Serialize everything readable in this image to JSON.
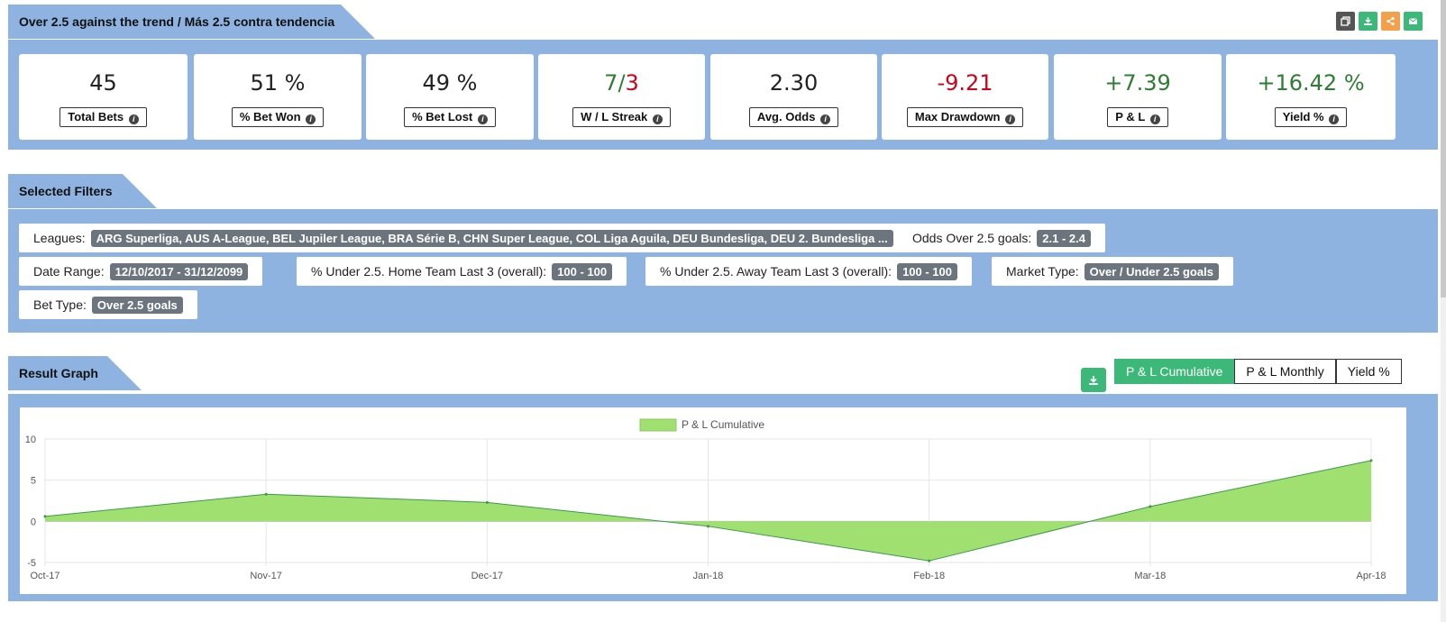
{
  "header": {
    "title": "Over 2.5 against the trend / Más 2.5 contra tendencia",
    "icons": [
      "copy-icon",
      "download-icon",
      "share-icon",
      "email-icon"
    ],
    "icon_colors": [
      "#555555",
      "#3cb878",
      "#f4a04a",
      "#3cb878"
    ]
  },
  "stats": [
    {
      "value": "45",
      "label": "Total Bets",
      "color": "#222222"
    },
    {
      "value": "51 %",
      "label": "% Bet Won",
      "color": "#222222"
    },
    {
      "value": "49 %",
      "label": "% Bet Lost",
      "color": "#222222"
    },
    {
      "value_win": "7",
      "value_sep": "/",
      "value_loss": "3",
      "label": "W / L Streak",
      "color_win": "#2e7d32",
      "color_loss": "#d0021b"
    },
    {
      "value": "2.30",
      "label": "Avg. Odds",
      "color": "#222222"
    },
    {
      "value": "-9.21",
      "label": "Max Drawdown",
      "color": "#d0021b"
    },
    {
      "value": "+7.39",
      "label": "P & L",
      "color": "#2e7d32"
    },
    {
      "value": "+16.42 %",
      "label": "Yield %",
      "color": "#2e7d32"
    }
  ],
  "filters": {
    "title": "Selected Filters",
    "items": [
      {
        "label": "Leagues:",
        "value": "ARG Superliga, AUS A-League, BEL Jupiler League, BRA Série B, CHN Super League, COL Liga Aguila, DEU Bundesliga, DEU 2. Bundesliga ..."
      },
      {
        "label": "Odds Over 2.5 goals:",
        "value": "2.1 - 2.4"
      },
      {
        "label": "Date Range:",
        "value": "12/10/2017 - 31/12/2099"
      },
      {
        "label": "% Under 2.5. Home Team Last 3 (overall):",
        "value": "100 - 100"
      },
      {
        "label": "% Under 2.5. Away Team Last 3 (overall):",
        "value": "100 - 100"
      },
      {
        "label": "Market Type:",
        "value": "Over / Under 2.5 goals"
      },
      {
        "label": "Bet Type:",
        "value": "Over 2.5 goals"
      }
    ]
  },
  "graph": {
    "title": "Result Graph",
    "buttons": [
      "P & L Cumulative",
      "P & L Monthly",
      "Yield %"
    ],
    "active_button": "P & L Cumulative",
    "accent": "#3cb878"
  },
  "chart_data": {
    "type": "area",
    "x": [
      "Oct-17",
      "Nov-17",
      "Dec-17",
      "Jan-18",
      "Feb-18",
      "Mar-18",
      "Apr-18"
    ],
    "series": [
      {
        "name": "P & L Cumulative",
        "values": [
          0.6,
          3.3,
          2.3,
          -0.6,
          -4.8,
          1.8,
          7.39
        ],
        "color": "#a0e070"
      }
    ],
    "yticks": [
      10,
      5,
      0,
      -5
    ],
    "ylim": [
      -5,
      10
    ],
    "grid": true,
    "legend": "top-center"
  }
}
